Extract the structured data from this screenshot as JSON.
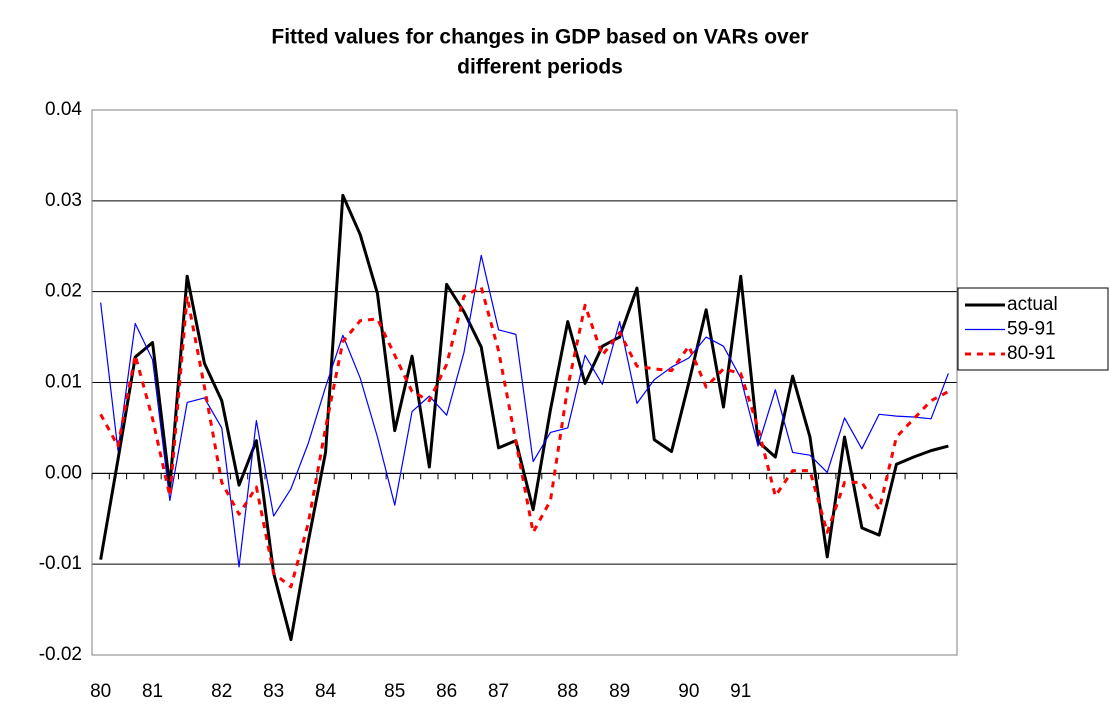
{
  "chart_data": {
    "type": "line",
    "title": [
      "Fitted values for changes in GDP based on VARs over",
      "different periods"
    ],
    "categories": [
      "80",
      null,
      null,
      "81",
      null,
      null,
      null,
      "82",
      null,
      null,
      "83",
      null,
      null,
      "84",
      null,
      null,
      null,
      "85",
      null,
      null,
      "86",
      null,
      null,
      "87",
      null,
      null,
      null,
      "88",
      null,
      null,
      "89",
      null,
      null,
      null,
      "90",
      null,
      null,
      "91",
      null,
      null,
      null,
      null,
      null,
      null,
      null,
      null,
      null,
      null,
      null,
      null
    ],
    "series": [
      {
        "name": "actual",
        "color": "#000000",
        "width": 3,
        "dashed": false,
        "values": [
          -0.0095,
          0.0015,
          0.0128,
          0.0144,
          -0.0015,
          0.0217,
          0.0121,
          0.008,
          -0.0013,
          0.0036,
          -0.011,
          -0.0183,
          -0.0075,
          0.0023,
          0.0306,
          0.0263,
          0.0198,
          0.0047,
          0.0129,
          0.0007,
          0.0208,
          0.0178,
          0.0139,
          0.0028,
          0.0036,
          -0.004,
          0.007,
          0.0167,
          0.0099,
          0.014,
          0.015,
          0.0204,
          0.0037,
          0.0024,
          0.01,
          0.018,
          0.0073,
          0.0217,
          0.0035,
          0.0018,
          0.0107,
          0.004,
          -0.0092,
          0.004,
          -0.006,
          -0.0068,
          0.001,
          0.0018,
          0.0025,
          0.003
        ]
      },
      {
        "name": "59-91",
        "color": "#0000ff",
        "width": 1.2,
        "dashed": false,
        "values": [
          0.0188,
          0.0025,
          0.0165,
          0.0125,
          -0.003,
          0.0078,
          0.0083,
          0.005,
          -0.0103,
          0.0058,
          -0.0047,
          -0.0017,
          0.0033,
          0.0095,
          0.0152,
          0.0105,
          0.004,
          -0.0035,
          0.0068,
          0.0085,
          0.0064,
          0.0133,
          0.024,
          0.0158,
          0.0153,
          0.0013,
          0.0045,
          0.005,
          0.013,
          0.0098,
          0.0167,
          0.0077,
          0.0103,
          0.0117,
          0.0127,
          0.015,
          0.014,
          0.0105,
          0.003,
          0.0092,
          0.0023,
          0.002,
          0.0001,
          0.0061,
          0.0027,
          0.0065,
          0.0063,
          0.0062,
          0.006,
          0.011
        ]
      },
      {
        "name": "80-91",
        "color": "#ff0000",
        "width": 3,
        "dashed": true,
        "values": [
          0.0065,
          0.003,
          0.013,
          0.006,
          -0.0025,
          0.0195,
          0.0095,
          -0.001,
          -0.0045,
          -0.0015,
          -0.011,
          -0.0125,
          -0.0055,
          0.005,
          0.0145,
          0.0168,
          0.017,
          0.013,
          0.009,
          0.008,
          0.012,
          0.0195,
          0.0205,
          0.0135,
          0.0035,
          -0.0065,
          -0.003,
          0.0095,
          0.0185,
          0.013,
          0.0155,
          0.0118,
          0.0115,
          0.0113,
          0.014,
          0.0095,
          0.0115,
          0.011,
          0.005,
          -0.0025,
          0.0003,
          0.0003,
          -0.0065,
          -0.001,
          -0.001,
          -0.004,
          0.004,
          0.006,
          0.008,
          0.009
        ]
      }
    ],
    "ylim": [
      -0.02,
      0.04
    ],
    "yticks": [
      -0.02,
      -0.01,
      {
        "value": 0,
        "label": "0.00"
      },
      0.01,
      0.02,
      0.03,
      0.04
    ],
    "grid": true,
    "legend": "right"
  }
}
